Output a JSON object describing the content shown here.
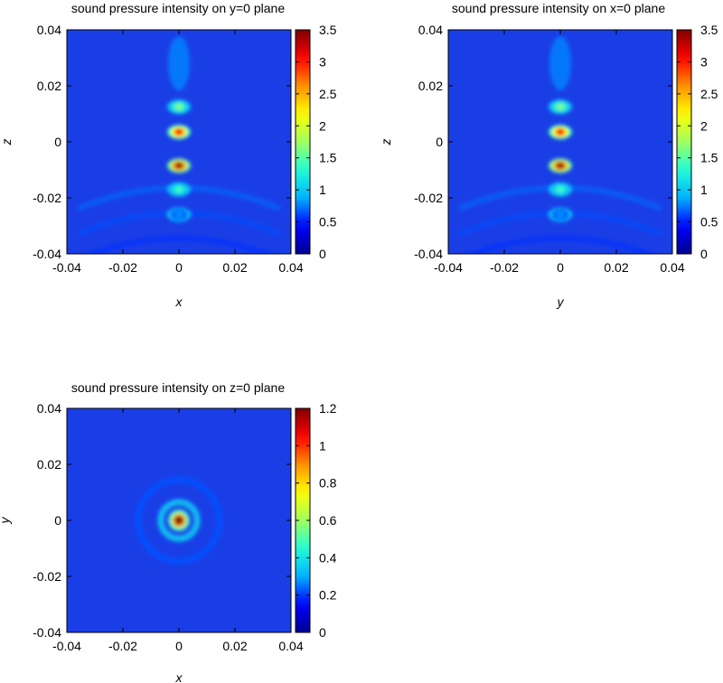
{
  "colorscale": [
    "#00008f",
    "#0000ff",
    "#00b0ff",
    "#20ffd8",
    "#a0ff60",
    "#ffff00",
    "#ff9000",
    "#ff0000",
    "#800000"
  ],
  "background_color": "#1a3ee6",
  "chart_data": [
    {
      "type": "heatmap",
      "title": "sound pressure intensity on y=0 plane",
      "xlabel": "x",
      "ylabel": "z",
      "xlim": [
        -0.04,
        0.04
      ],
      "ylim": [
        -0.04,
        0.04
      ],
      "xticks": [
        "-0.04",
        "-0.02",
        "0",
        "0.02",
        "0.04"
      ],
      "yticks": [
        "-0.04",
        "-0.02",
        "0",
        "0.02",
        "0.04"
      ],
      "colorbar": {
        "range": [
          0,
          3.5
        ],
        "ticks": [
          "0",
          "0.5",
          "1",
          "1.5",
          "2",
          "2.5",
          "3",
          "3.5"
        ]
      },
      "features": [
        {
          "x": 0,
          "y": 0.0125,
          "value": 1.6
        },
        {
          "x": 0,
          "y": 0.0035,
          "value": 3.1
        },
        {
          "x": 0,
          "y": -0.0085,
          "value": 3.4
        },
        {
          "x": 0,
          "y": -0.017,
          "value": 1.4
        },
        {
          "x": 0,
          "y": -0.026,
          "value": 0.8
        }
      ]
    },
    {
      "type": "heatmap",
      "title": "sound pressure intensity on x=0 plane",
      "xlabel": "y",
      "ylabel": "z",
      "xlim": [
        -0.04,
        0.04
      ],
      "ylim": [
        -0.04,
        0.04
      ],
      "xticks": [
        "-0.04",
        "-0.02",
        "0",
        "0.02",
        "0.04"
      ],
      "yticks": [
        "-0.04",
        "-0.02",
        "0",
        "0.02",
        "0.04"
      ],
      "colorbar": {
        "range": [
          0,
          3.5
        ],
        "ticks": [
          "0",
          "0.5",
          "1",
          "1.5",
          "2",
          "2.5",
          "3",
          "3.5"
        ]
      },
      "features": [
        {
          "x": 0,
          "y": 0.0125,
          "value": 1.6
        },
        {
          "x": 0,
          "y": 0.0035,
          "value": 3.1
        },
        {
          "x": 0,
          "y": -0.0085,
          "value": 3.4
        },
        {
          "x": 0,
          "y": -0.017,
          "value": 1.4
        },
        {
          "x": 0,
          "y": -0.026,
          "value": 0.8
        }
      ]
    },
    {
      "type": "heatmap",
      "title": "sound pressure intensity on z=0 plane",
      "xlabel": "x",
      "ylabel": "y",
      "xlim": [
        -0.04,
        0.04
      ],
      "ylim": [
        -0.04,
        0.04
      ],
      "xticks": [
        "-0.04",
        "-0.02",
        "0",
        "0.02",
        "0.04"
      ],
      "yticks": [
        "-0.04",
        "-0.02",
        "0",
        "0.02",
        "0.04"
      ],
      "colorbar": {
        "range": [
          0,
          1.2
        ],
        "ticks": [
          "0",
          "0.2",
          "0.4",
          "0.6",
          "0.8",
          "1",
          "1.2"
        ]
      },
      "features": [
        {
          "x": 0,
          "y": 0,
          "value": 1.2
        },
        {
          "ring_radius": 0.0065,
          "value": 0.35
        },
        {
          "ring_radius": 0.0145,
          "value": 0.22
        }
      ]
    }
  ]
}
